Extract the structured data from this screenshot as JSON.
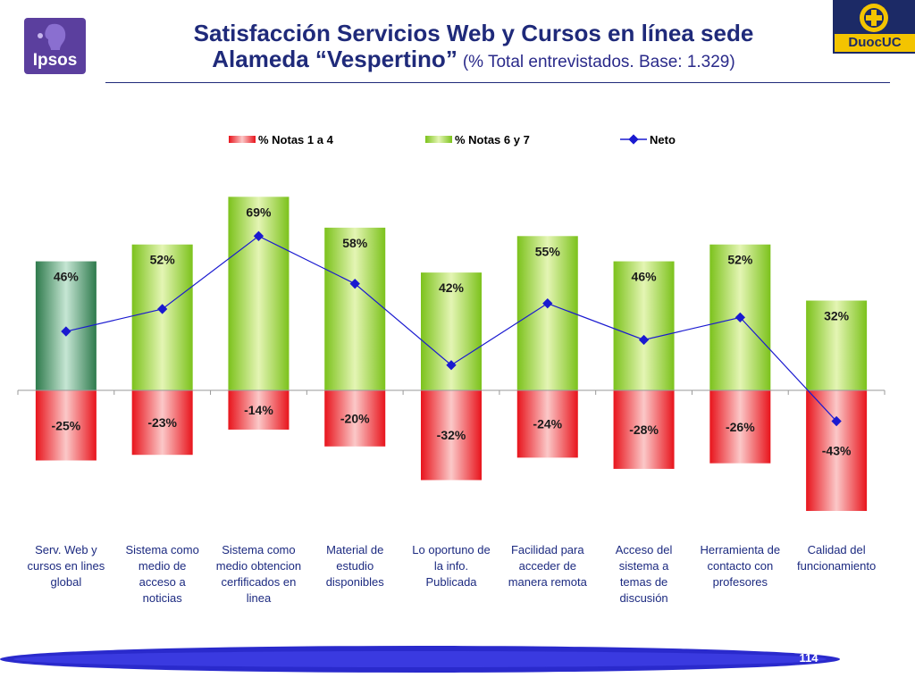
{
  "header": {
    "title_line1": "Satisfacción Servicios Web y Cursos en línea sede",
    "title_line2": "Alameda “Vespertino”",
    "subtitle": "(% Total entrevistados. Base: 1.329)"
  },
  "logos": {
    "left": "Ipsos",
    "right": "DuocUC"
  },
  "page_number": "114",
  "colors": {
    "title": "#1f2a7a",
    "negative_bar": "#ee2a2a",
    "positive_bar": "#8ccc2a",
    "highlight_bar": "#3c8a5a",
    "neto_line": "#1a1ad0"
  },
  "chart_data": {
    "type": "bar",
    "categories": [
      "Serv. Web y cursos en lines global",
      "Sistema como medio de acceso a noticias",
      "Sistema como medio obtencion cerfificados en linea",
      "Material de estudio disponibles",
      "Lo oportuno de la info. Publicada",
      "Facilidad para acceder de manera remota",
      "Acceso del sistema a temas de discusión",
      "Herramienta de contacto con profesores",
      "Calidad del funcionamiento"
    ],
    "category_lines": [
      [
        "Serv. Web y",
        "cursos en lines",
        "global"
      ],
      [
        "Sistema como",
        "medio de",
        "acceso a",
        "noticias"
      ],
      [
        "Sistema como",
        "medio obtencion",
        "cerfificados en",
        "linea"
      ],
      [
        "Material de",
        "estudio",
        "disponibles"
      ],
      [
        "Lo oportuno de",
        "la info.",
        "Publicada"
      ],
      [
        "Facilidad para",
        "acceder de",
        "manera remota"
      ],
      [
        "Acceso del",
        "sistema a",
        "temas de",
        "discusión"
      ],
      [
        "Herramienta de",
        "contacto con",
        "profesores"
      ],
      [
        "Calidad del",
        "funcionamiento"
      ]
    ],
    "series": [
      {
        "name": "% Notas 1 a 4",
        "values": [
          -25,
          -23,
          -14,
          -20,
          -32,
          -24,
          -28,
          -26,
          -43
        ],
        "labels": [
          "-25%",
          "-23%",
          "-14%",
          "-20%",
          "-32%",
          "-24%",
          "-28%",
          "-26%",
          "-43%"
        ]
      },
      {
        "name": "% Notas 6 y 7",
        "values": [
          46,
          52,
          69,
          58,
          42,
          55,
          46,
          52,
          32
        ],
        "labels": [
          "46%",
          "52%",
          "69%",
          "58%",
          "42%",
          "55%",
          "46%",
          "52%",
          "32%"
        ]
      },
      {
        "name": "Neto",
        "values": [
          21,
          29,
          55,
          38,
          9,
          31,
          18,
          26,
          -11
        ]
      }
    ],
    "ylim": [
      -47,
      77
    ],
    "legend": "top",
    "grid": false
  }
}
